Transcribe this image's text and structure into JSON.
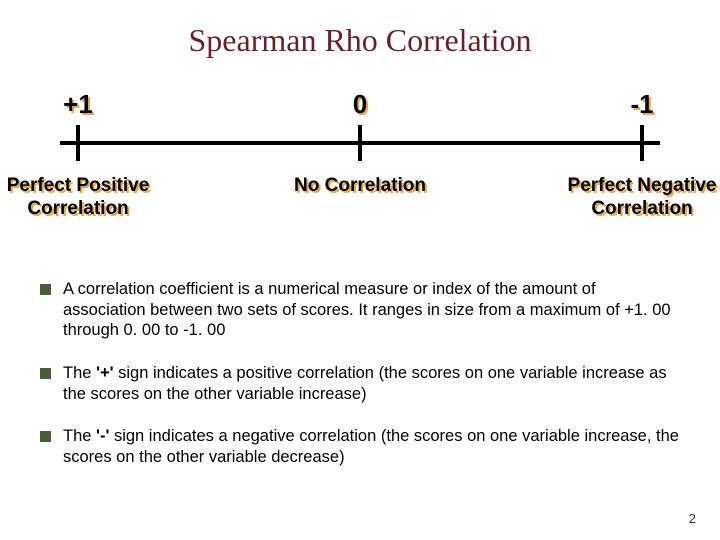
{
  "title": "Spearman Rho Correlation",
  "scale": {
    "positions_pct": [
      3,
      50,
      97
    ],
    "values": [
      "+1",
      "0",
      "-1"
    ],
    "labels": [
      "Perfect Positive\nCorrelation",
      "No Correlation",
      "Perfect Negative\nCorrelation"
    ],
    "value_fontsize": 26,
    "label_fontsize": 19,
    "text_color": "#000000",
    "shadow_color": "#e8a84a",
    "line_color": "#000000",
    "line_width": 4,
    "tick_height": 36
  },
  "bullets": [
    {
      "text": "A correlation coefficient is a numerical measure or index of the amount of association between two sets of scores. It ranges in size from a maximum of +1. 00 through 0. 00 to -1. 00"
    },
    {
      "pre": "The ",
      "bold": "'+'",
      "post": " sign indicates a positive correlation (the scores on one variable increase as the scores on the other variable increase)"
    },
    {
      "pre": "The ",
      "bold": "'-'",
      "post": " sign indicates a negative correlation (the scores on one variable increase, the scores on the other variable decrease)"
    }
  ],
  "bullet_marker_color": "#4a5c3a",
  "title_color": "#6b1f2a",
  "title_fontsize": 32,
  "body_fontsize": 16.5,
  "background_color": "#ffffff",
  "page_number": "2"
}
